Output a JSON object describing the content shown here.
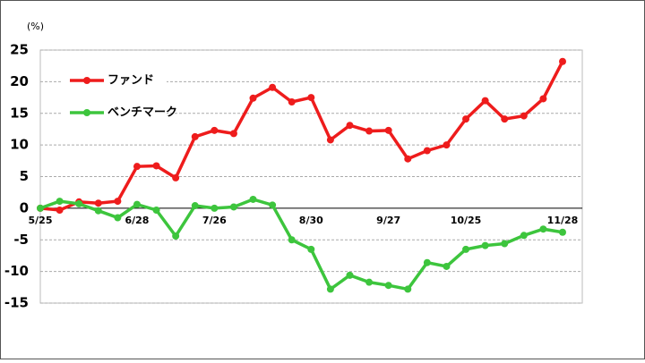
{
  "chart_data": {
    "type": "line",
    "unit_label": "(%)",
    "categories": [
      "5/25",
      null,
      null,
      null,
      null,
      "6/28",
      null,
      null,
      null,
      "7/26",
      null,
      null,
      null,
      null,
      "8/30",
      null,
      null,
      null,
      "9/27",
      null,
      null,
      null,
      "10/25",
      null,
      null,
      null,
      null,
      "11/28"
    ],
    "series": [
      {
        "name": "ファンド",
        "color": "#ee1c1c",
        "values": [
          0,
          -0.3,
          1.0,
          0.8,
          1.1,
          6.6,
          6.7,
          4.8,
          11.3,
          12.3,
          11.8,
          17.4,
          19.1,
          16.8,
          17.5,
          10.8,
          13.1,
          12.2,
          12.3,
          7.8,
          9.1,
          10.0,
          14.1,
          17.0,
          14.1,
          14.6,
          17.3,
          23.2
        ]
      },
      {
        "name": "ベンチマーク",
        "color": "#3dc53d",
        "values": [
          0,
          1.1,
          0.7,
          -0.4,
          -1.5,
          0.6,
          -0.3,
          -4.4,
          0.4,
          0.0,
          0.2,
          1.4,
          0.5,
          -5.0,
          -6.5,
          -12.8,
          -10.6,
          -11.7,
          -12.2,
          -12.8,
          -8.6,
          -9.2,
          -6.5,
          -5.9,
          -5.6,
          -4.3,
          -3.3,
          -3.8
        ]
      }
    ],
    "ylim": [
      -15,
      25
    ],
    "yticks": [
      -15,
      -10,
      -5,
      0,
      5,
      10,
      15,
      20,
      25
    ],
    "grid": true,
    "legend": "upper left"
  }
}
